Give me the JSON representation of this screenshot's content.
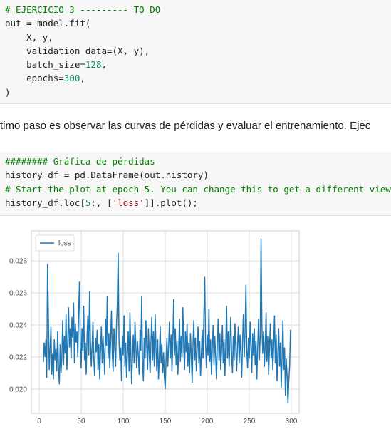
{
  "cells": [
    {
      "lines": [
        "# EJERCICIO 3 --------- TO DO",
        "out = model.fit(",
        "    X, y,",
        "    validation_data=(X, y),",
        "    batch_size=128,",
        "    epochs=300,",
        ")"
      ]
    },
    {
      "text": "timo paso es observar las curvas de pérdidas y evaluar el entrenamiento. Ejec"
    },
    {
      "lines": [
        "######## Gráfica de pérdidas",
        "history_df = pd.DataFrame(out.history)",
        "# Start the plot at epoch 5. You can change this to get a different view.",
        "history_df.loc[5:, ['loss']].plot();"
      ]
    }
  ],
  "chart_data": {
    "type": "line",
    "legend": "upper left",
    "grid": true,
    "xlim": [
      -9.3,
      309.3
    ],
    "xticks": [
      0,
      50,
      100,
      150,
      200,
      250,
      300
    ],
    "ylim": [
      0.01849,
      0.02987
    ],
    "yticks": [
      {
        "value": 0.02,
        "label": "0.020"
      },
      0.022,
      0.024,
      0.026,
      0.028
    ],
    "x": [
      5,
      6,
      7,
      8,
      9,
      10,
      11,
      12,
      13,
      14,
      15,
      16,
      17,
      18,
      19,
      20,
      21,
      22,
      23,
      24,
      25,
      26,
      27,
      28,
      29,
      30,
      31,
      32,
      33,
      34,
      35,
      36,
      37,
      38,
      39,
      40,
      41,
      42,
      43,
      44,
      45,
      46,
      47,
      48,
      49,
      50,
      51,
      52,
      53,
      54,
      55,
      56,
      57,
      58,
      59,
      60,
      61,
      62,
      63,
      64,
      65,
      66,
      67,
      68,
      69,
      70,
      71,
      72,
      73,
      74,
      75,
      76,
      77,
      78,
      79,
      80,
      81,
      82,
      83,
      84,
      85,
      86,
      87,
      88,
      89,
      90,
      91,
      92,
      93,
      94,
      95,
      96,
      97,
      98,
      99,
      100,
      101,
      102,
      103,
      104,
      105,
      106,
      107,
      108,
      109,
      110,
      111,
      112,
      113,
      114,
      115,
      116,
      117,
      118,
      119,
      120,
      121,
      122,
      123,
      124,
      125,
      126,
      127,
      128,
      129,
      130,
      131,
      132,
      133,
      134,
      135,
      136,
      137,
      138,
      139,
      140,
      141,
      142,
      143,
      144,
      145,
      146,
      147,
      148,
      149,
      150,
      151,
      152,
      153,
      154,
      155,
      156,
      157,
      158,
      159,
      160,
      161,
      162,
      163,
      164,
      165,
      166,
      167,
      168,
      169,
      170,
      171,
      172,
      173,
      174,
      175,
      176,
      177,
      178,
      179,
      180,
      181,
      182,
      183,
      184,
      185,
      186,
      187,
      188,
      189,
      190,
      191,
      192,
      193,
      194,
      195,
      196,
      197,
      198,
      199,
      200,
      201,
      202,
      203,
      204,
      205,
      206,
      207,
      208,
      209,
      210,
      211,
      212,
      213,
      214,
      215,
      216,
      217,
      218,
      219,
      220,
      221,
      222,
      223,
      224,
      225,
      226,
      227,
      228,
      229,
      230,
      231,
      232,
      233,
      234,
      235,
      236,
      237,
      238,
      239,
      240,
      241,
      242,
      243,
      244,
      245,
      246,
      247,
      248,
      249,
      250,
      251,
      252,
      253,
      254,
      255,
      256,
      257,
      258,
      259,
      260,
      261,
      262,
      263,
      264,
      265,
      266,
      267,
      268,
      269,
      270,
      271,
      272,
      273,
      274,
      275,
      276,
      277,
      278,
      279,
      280,
      281,
      282,
      283,
      284,
      285,
      286,
      287,
      288,
      289,
      290,
      291,
      292,
      293,
      294,
      295,
      296,
      297,
      298,
      299
    ],
    "series": [
      {
        "name": "loss",
        "color": "#1f77b4",
        "values": [
          0.0217,
          0.0229,
          0.022,
          0.0231,
          0.0207,
          0.0278,
          0.0245,
          0.0212,
          0.0225,
          0.0239,
          0.0209,
          0.0222,
          0.0206,
          0.0231,
          0.0218,
          0.0225,
          0.0211,
          0.0236,
          0.0214,
          0.0203,
          0.0228,
          0.021,
          0.0219,
          0.0243,
          0.0215,
          0.0233,
          0.0222,
          0.0247,
          0.0212,
          0.0229,
          0.0251,
          0.0226,
          0.0238,
          0.0219,
          0.0245,
          0.0232,
          0.0254,
          0.0216,
          0.0241,
          0.0229,
          0.0236,
          0.022,
          0.0249,
          0.0267,
          0.0226,
          0.0213,
          0.0238,
          0.0224,
          0.0252,
          0.0218,
          0.0229,
          0.0209,
          0.0234,
          0.0246,
          0.0221,
          0.0261,
          0.023,
          0.0214,
          0.0227,
          0.0242,
          0.0219,
          0.0208,
          0.0232,
          0.0223,
          0.0237,
          0.0212,
          0.0228,
          0.0206,
          0.0224,
          0.0239,
          0.0216,
          0.0233,
          0.0221,
          0.0209,
          0.0244,
          0.0227,
          0.0258,
          0.0219,
          0.0235,
          0.0213,
          0.023,
          0.0249,
          0.0222,
          0.0211,
          0.0238,
          0.0226,
          0.0214,
          0.024,
          0.0253,
          0.0285,
          0.0231,
          0.0218,
          0.0226,
          0.0205,
          0.0233,
          0.0221,
          0.0246,
          0.0214,
          0.0229,
          0.0207,
          0.0222,
          0.0236,
          0.0211,
          0.0248,
          0.0225,
          0.0203,
          0.0219,
          0.0234,
          0.0216,
          0.0242,
          0.0228,
          0.0213,
          0.023,
          0.0221,
          0.0209,
          0.0237,
          0.0224,
          0.0258,
          0.0217,
          0.0205,
          0.0232,
          0.0219,
          0.0243,
          0.0226,
          0.0212,
          0.0238,
          0.0222,
          0.021,
          0.0229,
          0.0245,
          0.0218,
          0.0236,
          0.0214,
          0.0247,
          0.0225,
          0.0211,
          0.0231,
          0.0206,
          0.022,
          0.0239,
          0.0216,
          0.0228,
          0.021,
          0.0223,
          0.0207,
          0.02,
          0.0218,
          0.0232,
          0.0214,
          0.0226,
          0.0242,
          0.0219,
          0.0234,
          0.0211,
          0.0227,
          0.0256,
          0.0221,
          0.0238,
          0.0215,
          0.023,
          0.0209,
          0.0224,
          0.0244,
          0.0217,
          0.0233,
          0.022,
          0.0251,
          0.0226,
          0.0212,
          0.0236,
          0.0223,
          0.0241,
          0.0214,
          0.0229,
          0.021,
          0.0235,
          0.0221,
          0.0204,
          0.0227,
          0.0243,
          0.0218,
          0.0232,
          0.0211,
          0.0225,
          0.0239,
          0.0216,
          0.023,
          0.0208,
          0.0222,
          0.0237,
          0.0219,
          0.0246,
          0.027,
          0.0228,
          0.0213,
          0.0234,
          0.0221,
          0.025,
          0.0217,
          0.0231,
          0.0209,
          0.0226,
          0.024,
          0.0215,
          0.0233,
          0.022,
          0.0206,
          0.0229,
          0.0244,
          0.0218,
          0.0235,
          0.0212,
          0.0224,
          0.024,
          0.0216,
          0.0231,
          0.0208,
          0.0227,
          0.0252,
          0.0219,
          0.0236,
          0.0214,
          0.0229,
          0.0245,
          0.0221,
          0.021,
          0.0233,
          0.0218,
          0.0241,
          0.0225,
          0.0211,
          0.0228,
          0.0239,
          0.0216,
          0.0234,
          0.0222,
          0.0207,
          0.023,
          0.0247,
          0.022,
          0.0237,
          0.0265,
          0.0224,
          0.0213,
          0.0232,
          0.0219,
          0.0242,
          0.0227,
          0.021,
          0.0235,
          0.0221,
          0.0238,
          0.0215,
          0.023,
          0.0206,
          0.0226,
          0.0244,
          0.0218,
          0.0233,
          0.0294,
          0.024,
          0.0222,
          0.0236,
          0.0214,
          0.0229,
          0.0248,
          0.0217,
          0.0233,
          0.0209,
          0.0225,
          0.0241,
          0.0219,
          0.0231,
          0.0212,
          0.0227,
          0.0246,
          0.0216,
          0.0234,
          0.0205,
          0.0223,
          0.0238,
          0.0214,
          0.0229,
          0.0201,
          0.022,
          0.0243,
          0.0212,
          0.0226,
          0.0196,
          0.0219,
          0.0208,
          0.0191,
          0.0205,
          0.0214,
          0.0237
        ]
      }
    ]
  }
}
